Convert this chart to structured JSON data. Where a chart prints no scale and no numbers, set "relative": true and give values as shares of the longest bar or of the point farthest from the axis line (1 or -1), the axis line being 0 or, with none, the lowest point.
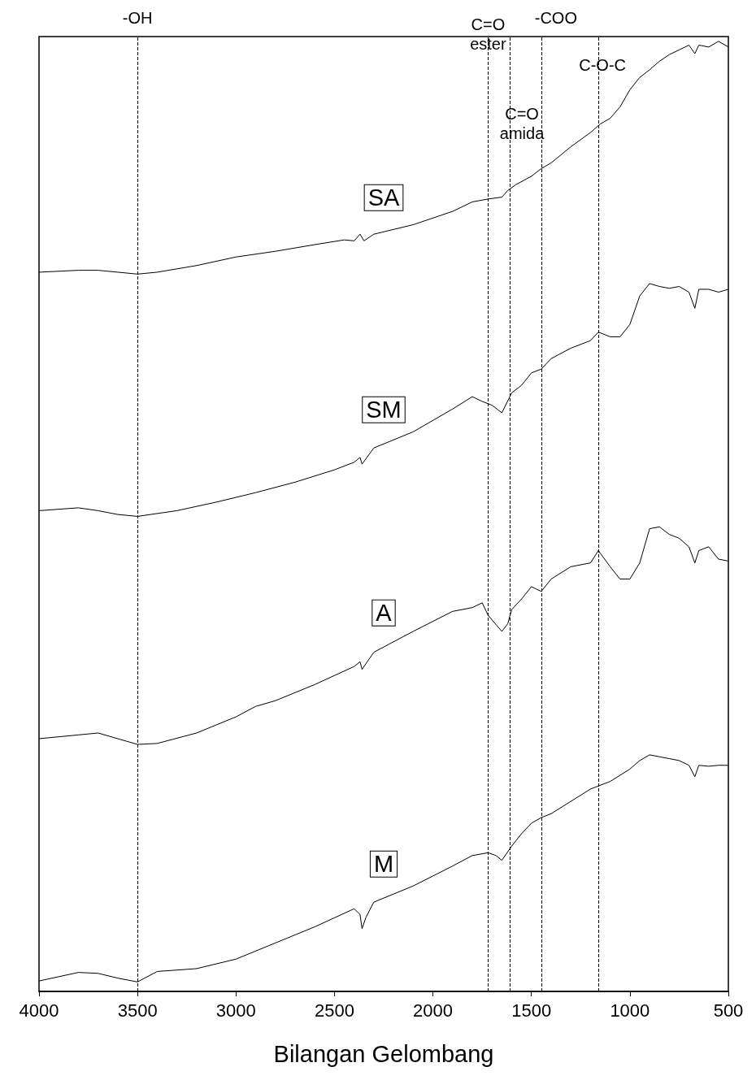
{
  "chart_data": {
    "type": "line",
    "relative": true,
    "xlabel": "Bilangan Gelombang",
    "xlim": [
      4000,
      500
    ],
    "xticks": [
      4000,
      3500,
      3000,
      2500,
      2000,
      1500,
      1000,
      500
    ],
    "legend": false,
    "marker": "none",
    "series": [
      {
        "name": "SA",
        "color": "#000000",
        "x": [
          4000,
          3800,
          3700,
          3500,
          3400,
          3200,
          3000,
          2800,
          2600,
          2450,
          2400,
          2370,
          2350,
          2300,
          2100,
          1900,
          1800,
          1720,
          1650,
          1620,
          1580,
          1500,
          1450,
          1400,
          1300,
          1200,
          1150,
          1100,
          1050,
          1000,
          950,
          900,
          850,
          800,
          750,
          700,
          670,
          650,
          600,
          550,
          500
        ],
        "values": [
          0.757,
          0.759,
          0.759,
          0.755,
          0.757,
          0.764,
          0.773,
          0.779,
          0.786,
          0.791,
          0.79,
          0.797,
          0.79,
          0.797,
          0.807,
          0.821,
          0.831,
          0.834,
          0.836,
          0.843,
          0.849,
          0.858,
          0.866,
          0.872,
          0.889,
          0.904,
          0.913,
          0.919,
          0.931,
          0.949,
          0.962,
          0.97,
          0.979,
          0.986,
          0.991,
          0.996,
          0.987,
          0.996,
          0.994,
          1.0,
          0.994
        ]
      },
      {
        "name": "SM",
        "color": "#000000",
        "x": [
          4000,
          3800,
          3700,
          3600,
          3500,
          3300,
          3100,
          2900,
          2700,
          2500,
          2400,
          2370,
          2360,
          2300,
          2100,
          1900,
          1800,
          1750,
          1700,
          1650,
          1600,
          1550,
          1500,
          1450,
          1400,
          1300,
          1200,
          1160,
          1100,
          1050,
          1000,
          950,
          900,
          850,
          800,
          750,
          700,
          670,
          650,
          600,
          550,
          500
        ],
        "values": [
          0.506,
          0.509,
          0.506,
          0.502,
          0.5,
          0.506,
          0.515,
          0.525,
          0.536,
          0.549,
          0.557,
          0.562,
          0.555,
          0.572,
          0.589,
          0.613,
          0.626,
          0.621,
          0.617,
          0.609,
          0.63,
          0.638,
          0.651,
          0.655,
          0.666,
          0.677,
          0.685,
          0.694,
          0.689,
          0.689,
          0.702,
          0.732,
          0.745,
          0.742,
          0.74,
          0.742,
          0.736,
          0.719,
          0.739,
          0.739,
          0.736,
          0.739
        ]
      },
      {
        "name": "A",
        "color": "#000000",
        "x": [
          4000,
          3800,
          3700,
          3600,
          3500,
          3400,
          3200,
          3000,
          2900,
          2800,
          2600,
          2400,
          2370,
          2360,
          2300,
          2100,
          1900,
          1800,
          1750,
          1720,
          1700,
          1650,
          1620,
          1600,
          1550,
          1500,
          1450,
          1400,
          1300,
          1200,
          1160,
          1100,
          1050,
          1000,
          950,
          900,
          850,
          800,
          750,
          700,
          670,
          650,
          600,
          550,
          500
        ],
        "values": [
          0.266,
          0.27,
          0.272,
          0.266,
          0.26,
          0.261,
          0.272,
          0.289,
          0.3,
          0.306,
          0.323,
          0.342,
          0.347,
          0.339,
          0.357,
          0.379,
          0.4,
          0.404,
          0.409,
          0.396,
          0.391,
          0.379,
          0.387,
          0.402,
          0.413,
          0.426,
          0.421,
          0.434,
          0.447,
          0.451,
          0.464,
          0.447,
          0.434,
          0.434,
          0.451,
          0.487,
          0.489,
          0.481,
          0.477,
          0.468,
          0.451,
          0.464,
          0.468,
          0.455,
          0.453
        ]
      },
      {
        "name": "M",
        "color": "#000000",
        "x": [
          4000,
          3800,
          3700,
          3600,
          3500,
          3400,
          3200,
          3000,
          2800,
          2600,
          2400,
          2370,
          2360,
          2340,
          2300,
          2100,
          1900,
          1800,
          1720,
          1680,
          1650,
          1600,
          1550,
          1500,
          1450,
          1400,
          1300,
          1200,
          1150,
          1100,
          1000,
          950,
          900,
          850,
          800,
          750,
          700,
          670,
          650,
          600,
          550,
          500
        ],
        "values": [
          0.011,
          0.02,
          0.019,
          0.014,
          0.01,
          0.021,
          0.024,
          0.034,
          0.051,
          0.068,
          0.087,
          0.081,
          0.066,
          0.078,
          0.094,
          0.111,
          0.132,
          0.143,
          0.146,
          0.143,
          0.138,
          0.153,
          0.166,
          0.177,
          0.183,
          0.187,
          0.2,
          0.213,
          0.217,
          0.221,
          0.234,
          0.243,
          0.249,
          0.247,
          0.245,
          0.243,
          0.238,
          0.226,
          0.238,
          0.237,
          0.238,
          0.238
        ]
      }
    ],
    "ref_lines": [
      {
        "axis": "x",
        "value": 3500,
        "label": "-OH",
        "color": "#000000",
        "line_style": "dashed"
      },
      {
        "axis": "x",
        "value": 1720,
        "label": "C=O\nester",
        "color": "#000000",
        "line_style": "dashed"
      },
      {
        "axis": "x",
        "value": 1610,
        "label": "C=O\namida",
        "color": "#000000",
        "line_style": "dashed"
      },
      {
        "axis": "x",
        "value": 1450,
        "label": "-COO",
        "color": "#000000",
        "line_style": "dashed"
      },
      {
        "axis": "x",
        "value": 1160,
        "label": "C-O-C",
        "color": "#000000",
        "line_style": "dashed"
      }
    ]
  }
}
